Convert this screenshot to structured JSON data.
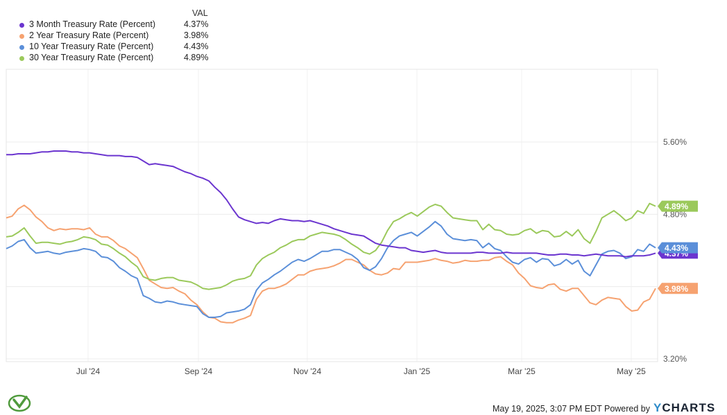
{
  "legend_header": "VAL",
  "footer": {
    "timestamp": "May 19, 2025, 3:07 PM EDT Powered by",
    "brand_y": "Y",
    "brand_rest": "CHARTS"
  },
  "chart_data": {
    "type": "line",
    "x_ticks": [
      "Jul '24",
      "Sep '24",
      "Nov '24",
      "Jan '25",
      "Mar '25",
      "May '25"
    ],
    "y_ticks": [
      "5.60%",
      "4.80%",
      "4.00%",
      "3.20%"
    ],
    "ylim": [
      3.2,
      5.6
    ],
    "grid": true,
    "legend": "top-left",
    "series": [
      {
        "name": "3 Month Treasury Rate (Percent)",
        "value_label": "4.37%",
        "color": "#6b35cf",
        "values": [
          5.46,
          5.46,
          5.47,
          5.47,
          5.47,
          5.48,
          5.49,
          5.49,
          5.5,
          5.5,
          5.5,
          5.49,
          5.49,
          5.48,
          5.48,
          5.47,
          5.46,
          5.45,
          5.45,
          5.45,
          5.44,
          5.44,
          5.43,
          5.39,
          5.35,
          5.36,
          5.35,
          5.34,
          5.33,
          5.3,
          5.27,
          5.25,
          5.22,
          5.2,
          5.17,
          5.1,
          5.04,
          4.96,
          4.86,
          4.77,
          4.74,
          4.72,
          4.7,
          4.71,
          4.7,
          4.73,
          4.75,
          4.74,
          4.73,
          4.73,
          4.72,
          4.73,
          4.71,
          4.69,
          4.67,
          4.64,
          4.62,
          4.6,
          4.58,
          4.57,
          4.56,
          4.52,
          4.48,
          4.46,
          4.45,
          4.44,
          4.43,
          4.43,
          4.4,
          4.39,
          4.38,
          4.39,
          4.4,
          4.38,
          4.37,
          4.37,
          4.37,
          4.37,
          4.37,
          4.38,
          4.38,
          4.37,
          4.37,
          4.37,
          4.38,
          4.37,
          4.37,
          4.37,
          4.37,
          4.37,
          4.36,
          4.35,
          4.35,
          4.36,
          4.36,
          4.35,
          4.35,
          4.34,
          4.35,
          4.36,
          4.35,
          4.34,
          4.34,
          4.34,
          4.33,
          4.34,
          4.34,
          4.34,
          4.35,
          4.37
        ]
      },
      {
        "name": "2 Year Treasury Rate (Percent)",
        "value_label": "3.98%",
        "color": "#f6a270",
        "values": [
          4.76,
          4.78,
          4.86,
          4.9,
          4.85,
          4.77,
          4.72,
          4.65,
          4.62,
          4.64,
          4.63,
          4.64,
          4.64,
          4.63,
          4.65,
          4.58,
          4.55,
          4.55,
          4.51,
          4.45,
          4.42,
          4.37,
          4.32,
          4.2,
          4.07,
          4.03,
          3.99,
          3.98,
          3.99,
          3.95,
          3.92,
          3.85,
          3.8,
          3.72,
          3.66,
          3.65,
          3.61,
          3.6,
          3.6,
          3.63,
          3.65,
          3.68,
          3.86,
          3.95,
          3.98,
          3.98,
          4.0,
          4.03,
          4.08,
          4.13,
          4.13,
          4.17,
          4.19,
          4.2,
          4.21,
          4.23,
          4.26,
          4.3,
          4.3,
          4.27,
          4.24,
          4.18,
          4.14,
          4.13,
          4.15,
          4.2,
          4.19,
          4.27,
          4.27,
          4.27,
          4.28,
          4.29,
          4.31,
          4.29,
          4.28,
          4.26,
          4.27,
          4.29,
          4.28,
          4.28,
          4.29,
          4.29,
          4.32,
          4.33,
          4.28,
          4.24,
          4.15,
          4.09,
          4.01,
          3.99,
          3.98,
          4.02,
          4.03,
          3.97,
          3.95,
          3.98,
          3.98,
          3.9,
          3.82,
          3.8,
          3.85,
          3.88,
          3.87,
          3.86,
          3.78,
          3.73,
          3.74,
          3.83,
          3.86,
          3.98
        ]
      },
      {
        "name": "10 Year Treasury Rate (Percent)",
        "value_label": "4.43%",
        "color": "#5b8fd9",
        "values": [
          4.42,
          4.45,
          4.5,
          4.52,
          4.43,
          4.37,
          4.38,
          4.39,
          4.37,
          4.36,
          4.38,
          4.39,
          4.4,
          4.42,
          4.41,
          4.39,
          4.33,
          4.32,
          4.28,
          4.21,
          4.17,
          4.12,
          4.09,
          3.9,
          3.87,
          3.83,
          3.82,
          3.84,
          3.83,
          3.81,
          3.8,
          3.79,
          3.78,
          3.7,
          3.66,
          3.66,
          3.67,
          3.71,
          3.72,
          3.73,
          3.75,
          3.8,
          3.96,
          4.04,
          4.08,
          4.13,
          4.17,
          4.22,
          4.27,
          4.3,
          4.28,
          4.31,
          4.35,
          4.39,
          4.39,
          4.41,
          4.41,
          4.38,
          4.35,
          4.3,
          4.21,
          4.18,
          4.22,
          4.31,
          4.43,
          4.51,
          4.56,
          4.58,
          4.6,
          4.56,
          4.61,
          4.66,
          4.72,
          4.67,
          4.58,
          4.53,
          4.52,
          4.51,
          4.52,
          4.51,
          4.43,
          4.48,
          4.42,
          4.4,
          4.33,
          4.27,
          4.25,
          4.3,
          4.32,
          4.27,
          4.31,
          4.3,
          4.23,
          4.25,
          4.3,
          4.25,
          4.29,
          4.17,
          4.12,
          4.24,
          4.36,
          4.39,
          4.4,
          4.37,
          4.31,
          4.33,
          4.41,
          4.39,
          4.47,
          4.43
        ]
      },
      {
        "name": "30 Year Treasury Rate (Percent)",
        "value_label": "4.89%",
        "color": "#9bc95b",
        "values": [
          4.55,
          4.56,
          4.6,
          4.65,
          4.56,
          4.48,
          4.49,
          4.49,
          4.48,
          4.47,
          4.49,
          4.5,
          4.52,
          4.55,
          4.54,
          4.52,
          4.47,
          4.46,
          4.42,
          4.37,
          4.33,
          4.27,
          4.22,
          4.11,
          4.08,
          4.07,
          4.09,
          4.1,
          4.1,
          4.07,
          4.06,
          4.05,
          4.02,
          3.98,
          3.97,
          3.98,
          3.99,
          4.02,
          4.06,
          4.08,
          4.09,
          4.12,
          4.24,
          4.31,
          4.35,
          4.38,
          4.43,
          4.46,
          4.5,
          4.52,
          4.52,
          4.56,
          4.58,
          4.6,
          4.59,
          4.58,
          4.56,
          4.52,
          4.47,
          4.43,
          4.38,
          4.36,
          4.4,
          4.49,
          4.62,
          4.72,
          4.75,
          4.79,
          4.82,
          4.78,
          4.83,
          4.88,
          4.91,
          4.89,
          4.82,
          4.76,
          4.75,
          4.74,
          4.73,
          4.73,
          4.63,
          4.69,
          4.63,
          4.62,
          4.58,
          4.57,
          4.58,
          4.62,
          4.64,
          4.59,
          4.62,
          4.61,
          4.55,
          4.56,
          4.61,
          4.56,
          4.63,
          4.53,
          4.48,
          4.61,
          4.76,
          4.8,
          4.84,
          4.79,
          4.73,
          4.76,
          4.84,
          4.81,
          4.92,
          4.89
        ]
      }
    ]
  }
}
